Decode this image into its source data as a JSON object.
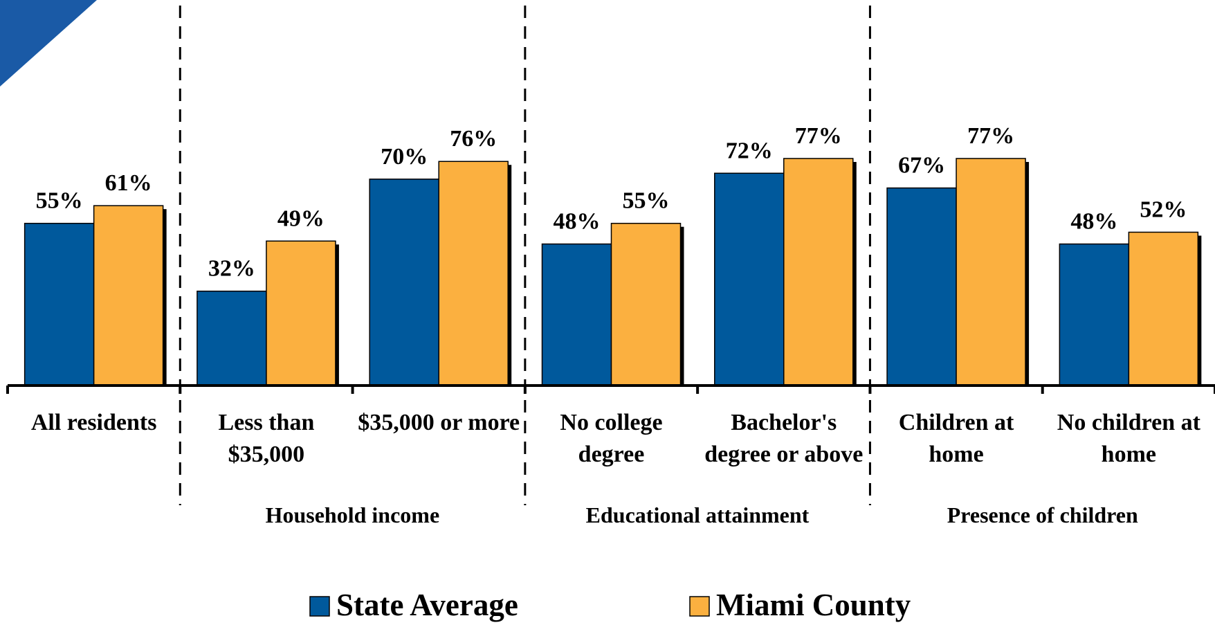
{
  "chart_data": {
    "type": "bar",
    "categories": [
      "All residents",
      "Less than $35,000",
      "$35,000 or more",
      "No college degree",
      "Bachelor's degree or above",
      "Children at home",
      "No children at home"
    ],
    "groups": [
      "Household income",
      "Educational attainment",
      "Presence of children"
    ],
    "series": [
      {
        "name": "State Average",
        "color": "#00599c",
        "values": [
          55,
          32,
          70,
          48,
          72,
          67,
          48
        ],
        "value_labels": [
          "55%",
          "32%",
          "70%",
          "48%",
          "72%",
          "67%",
          "48%"
        ]
      },
      {
        "name": "Miami County",
        "color": "#fbb040",
        "values": [
          61,
          49,
          76,
          55,
          77,
          77,
          52
        ],
        "value_labels": [
          "61%",
          "49%",
          "76%",
          "55%",
          "77%",
          "77%",
          "52%"
        ]
      }
    ],
    "ylim": [
      0,
      100
    ]
  }
}
